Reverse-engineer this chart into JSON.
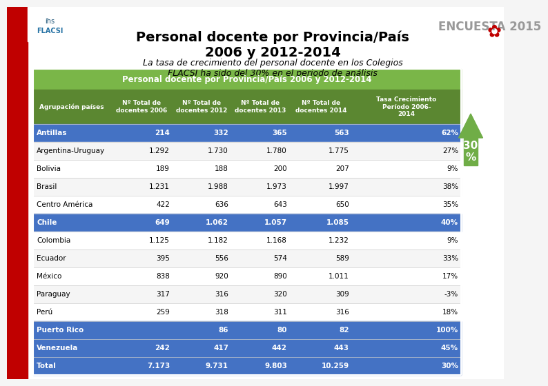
{
  "title_main": "Personal docente por Provincia/País\n2006 y 2012-2014",
  "title_encuesta": "ENCUESTA 2015",
  "subtitle": "La tasa de crecimiento del personal docente en los Colegios\nFLACSI ha sido del 30% en el periodo de análisis",
  "table_title": "Personal docente por Provincia/País 2006 y 2012-2014",
  "col_headers": [
    "Agrupación países",
    "Nº Total de\ndocentes 2006",
    "Nº Total de\ndocentes 2012",
    "Nº Total de\ndocentes 2013",
    "Nº Total de\ndocentes 2014",
    "Tasa Crecimiento\nPeríodo 2006-\n2014"
  ],
  "rows": [
    [
      "Antillas",
      "214",
      "332",
      "365",
      "563",
      "62%"
    ],
    [
      "Argentina-Uruguay",
      "1.292",
      "1.730",
      "1.780",
      "1.775",
      "27%"
    ],
    [
      "Bolivia",
      "189",
      "188",
      "200",
      "207",
      "9%"
    ],
    [
      "Brasil",
      "1.231",
      "1.988",
      "1.973",
      "1.997",
      "38%"
    ],
    [
      "Centro América",
      "422",
      "636",
      "643",
      "650",
      "35%"
    ],
    [
      "Chile",
      "649",
      "1.062",
      "1.057",
      "1.085",
      "40%"
    ],
    [
      "Colombia",
      "1.125",
      "1.182",
      "1.168",
      "1.232",
      "9%"
    ],
    [
      "Ecuador",
      "395",
      "556",
      "574",
      "589",
      "33%"
    ],
    [
      "México",
      "838",
      "920",
      "890",
      "1.011",
      "17%"
    ],
    [
      "Paraguay",
      "317",
      "316",
      "320",
      "309",
      "-3%"
    ],
    [
      "Perú",
      "259",
      "318",
      "311",
      "316",
      "18%"
    ],
    [
      "Puerto Rico",
      "",
      "86",
      "80",
      "82",
      "100%"
    ],
    [
      "Venezuela",
      "242",
      "417",
      "442",
      "443",
      "45%"
    ],
    [
      "Total",
      "7.173",
      "9.731",
      "9.803",
      "10.259",
      "30%"
    ]
  ],
  "highlighted_blue_rows": [
    0,
    5,
    11,
    12,
    13
  ],
  "highlighted_green_header": true,
  "bg_color": "#ffffff",
  "header_bg": "#5B8731",
  "header_text": "#ffffff",
  "blue_row_bg": "#4472C4",
  "blue_row_text": "#ffffff",
  "normal_row_bg": "#ffffff",
  "normal_row_text": "#000000",
  "table_header_bg": "#7AB648",
  "table_header_text": "#ffffff",
  "left_bar_color": "#C00000",
  "arrow_color": "#70AD47",
  "arrow_label": "30\n%",
  "logo_text": "ihs\nFLACSI",
  "encuesta_color": "#808080"
}
